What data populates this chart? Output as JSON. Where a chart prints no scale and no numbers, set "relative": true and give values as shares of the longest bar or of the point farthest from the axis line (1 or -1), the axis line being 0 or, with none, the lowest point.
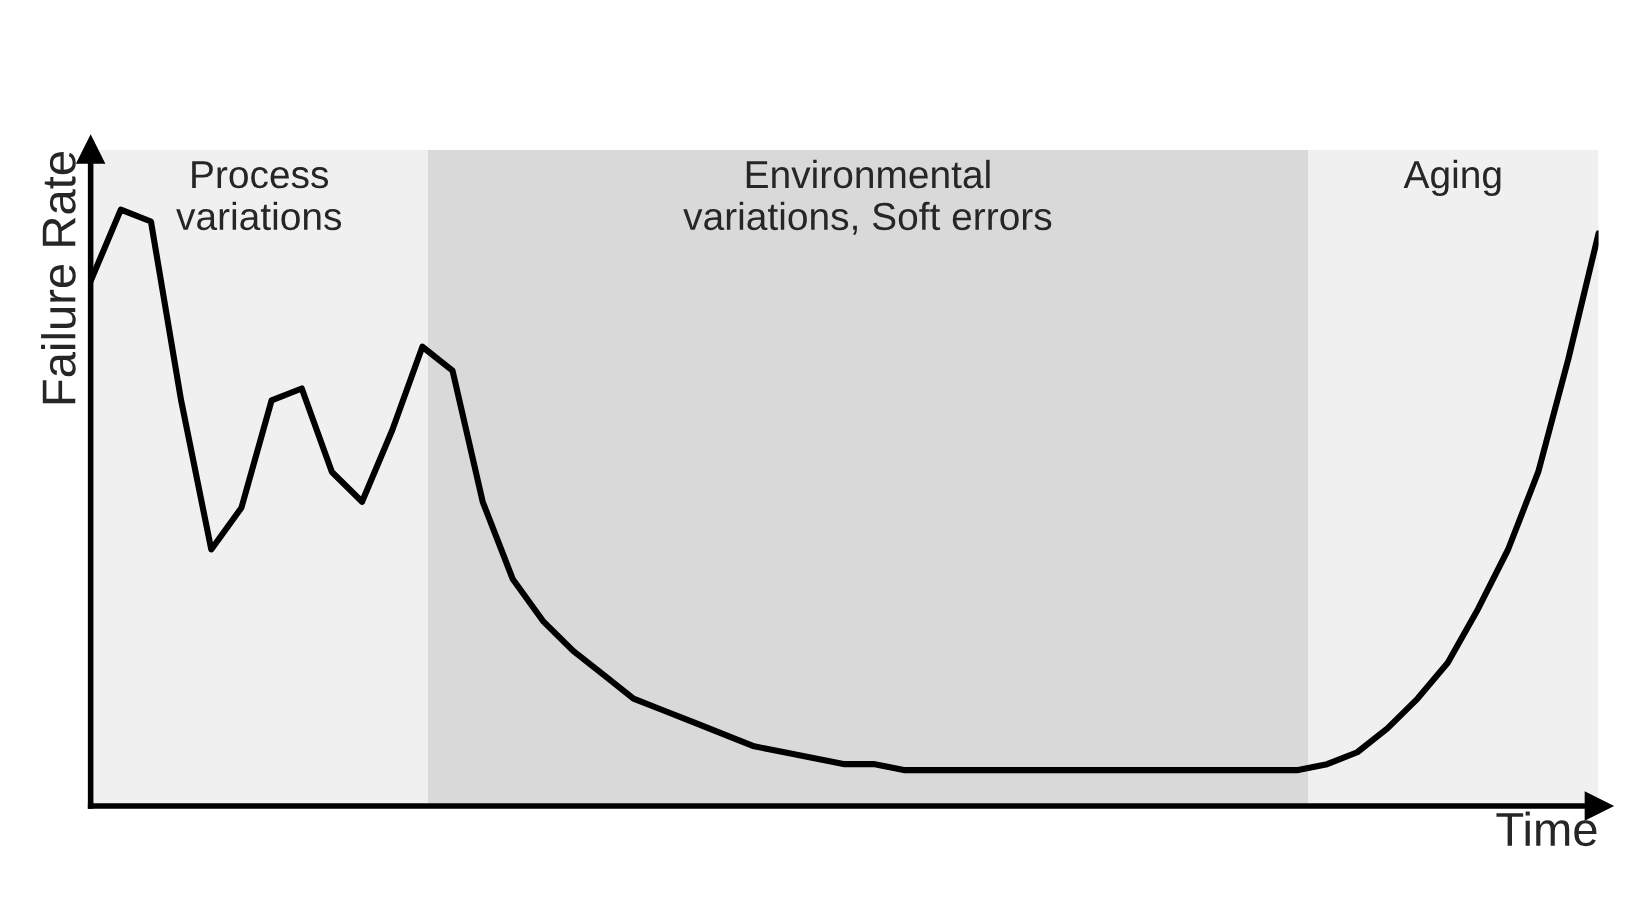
{
  "chart_data": {
    "type": "line",
    "relative": true,
    "xlabel": "Time",
    "ylabel": "Failure Rate",
    "categories": [
      null,
      null,
      null,
      null,
      null,
      null,
      null,
      null,
      null,
      null,
      null,
      null,
      null,
      null,
      null,
      null,
      null,
      null,
      null,
      null,
      null,
      null,
      null,
      null,
      null,
      null,
      null,
      null,
      null,
      null,
      null,
      null,
      null,
      null,
      null,
      null,
      null,
      null,
      null,
      null,
      null,
      null,
      null,
      null,
      null,
      null,
      null,
      null,
      null,
      null,
      null
    ],
    "series": [
      {
        "color": "#000000",
        "values": [
          0.88,
          1.0,
          0.98,
          0.68,
          0.43,
          0.5,
          0.68,
          0.7,
          0.56,
          0.51,
          0.63,
          0.77,
          0.73,
          0.51,
          0.38,
          0.31,
          0.26,
          0.22,
          0.18,
          0.16,
          0.14,
          0.12,
          0.1,
          0.09,
          0.08,
          0.07,
          0.07,
          0.06,
          0.06,
          0.06,
          0.06,
          0.06,
          0.06,
          0.06,
          0.06,
          0.06,
          0.06,
          0.06,
          0.06,
          0.06,
          0.06,
          0.07,
          0.09,
          0.13,
          0.18,
          0.24,
          0.33,
          0.43,
          0.56,
          0.75,
          0.96
        ]
      }
    ],
    "annotations": [
      "Process\nvariations",
      "Environmental\nvariations, Soft errors",
      "Aging"
    ]
  }
}
